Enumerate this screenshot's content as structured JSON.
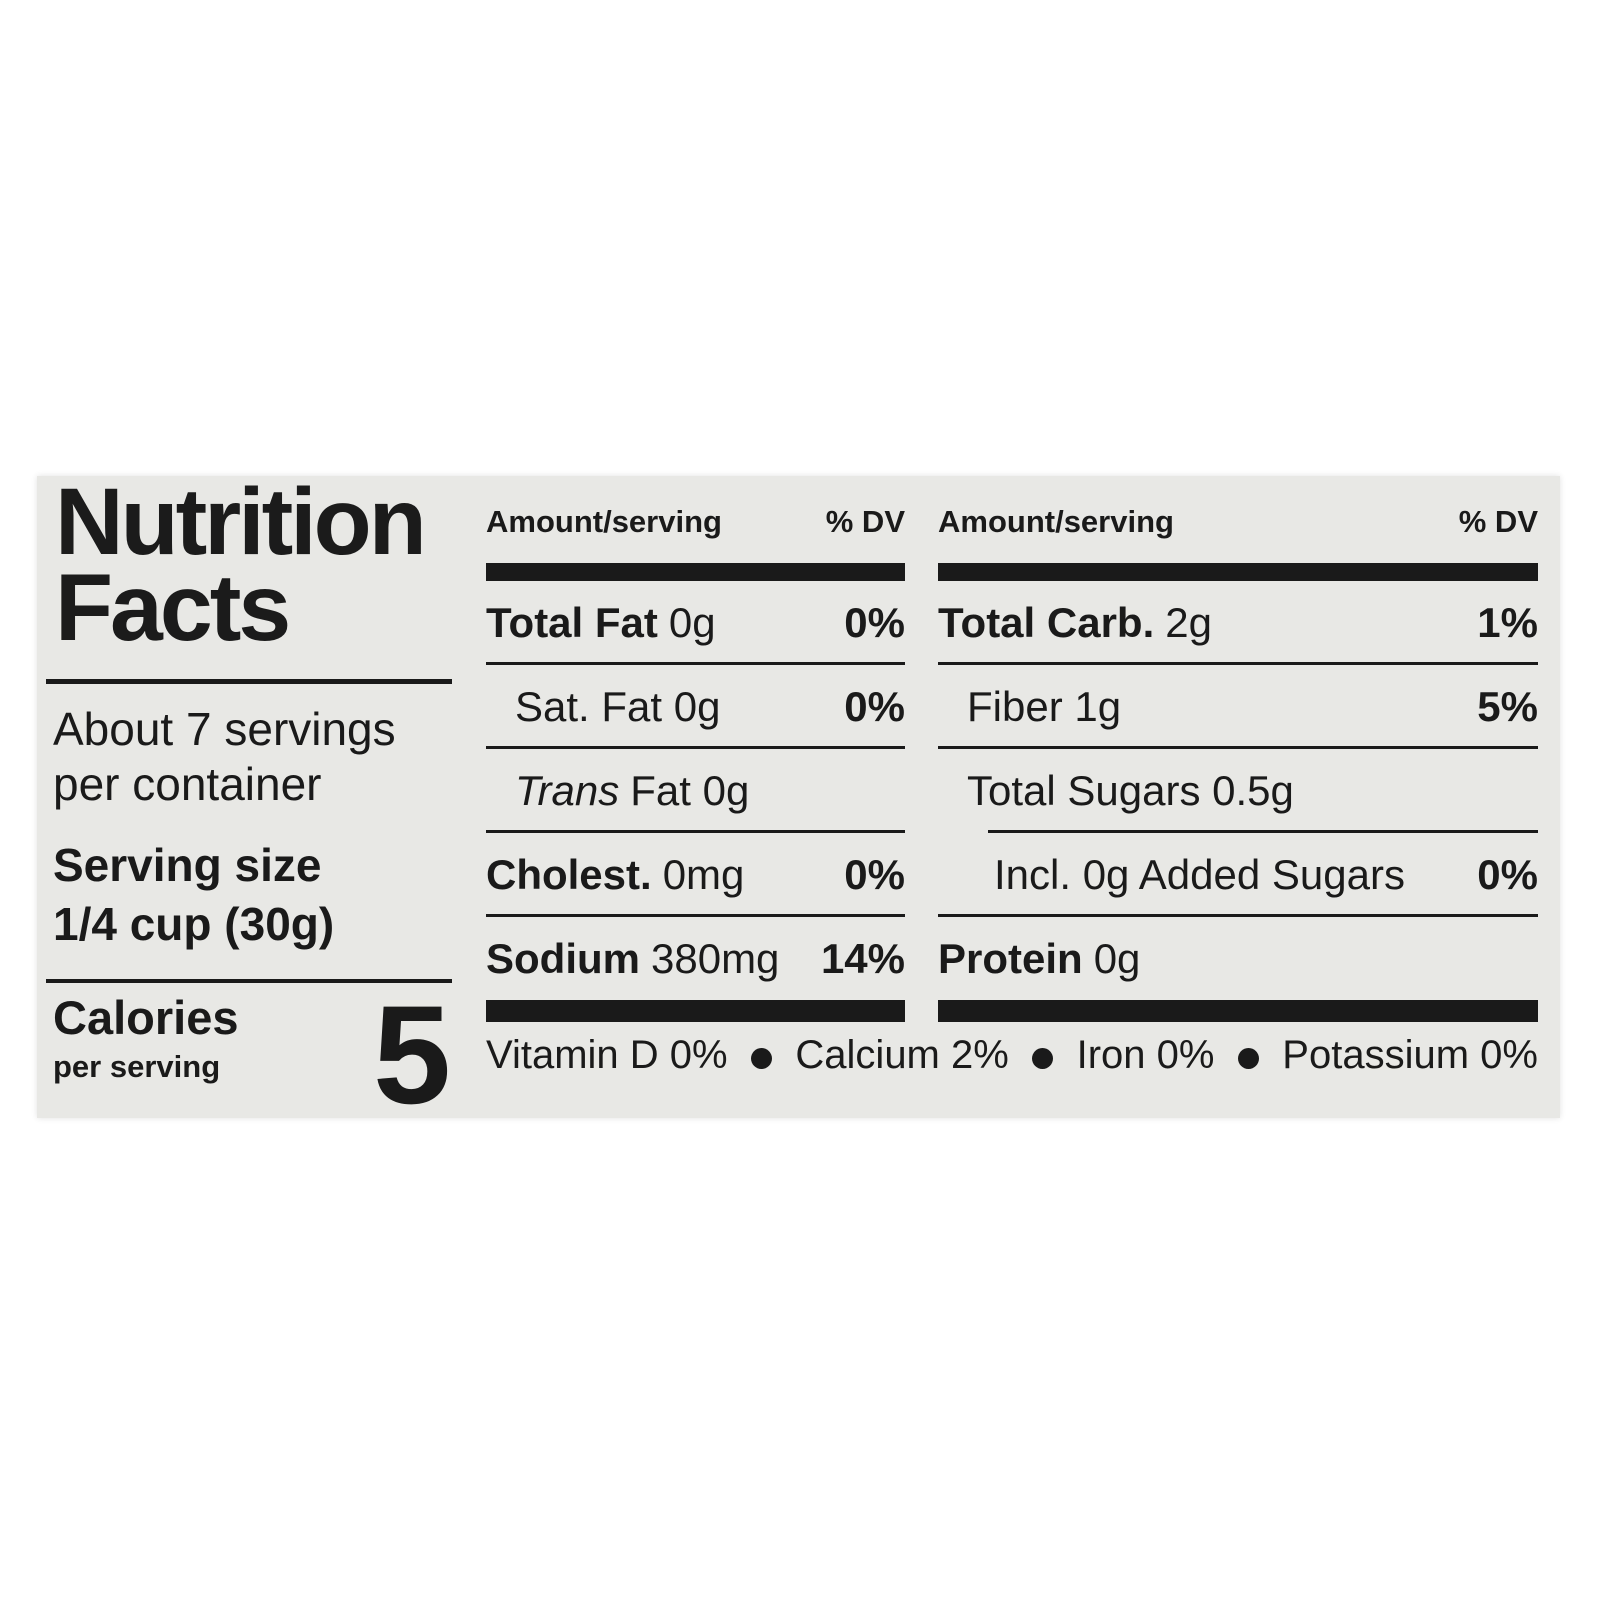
{
  "page": {
    "background": "#ffffff"
  },
  "label": {
    "background": "#e8e8e5",
    "ink": "#1a1a1a",
    "title": {
      "line1": "Nutrition",
      "line2": "Facts"
    },
    "servings_per_container": {
      "line1": "About 7 servings",
      "line2": "per container"
    },
    "serving_size": {
      "label": "Serving size",
      "value": "1/4 cup (30g)"
    },
    "calories": {
      "label": "Calories",
      "sublabel": "per serving",
      "value": "5"
    },
    "columns": [
      {
        "header": {
          "amount": "Amount/serving",
          "dv": "% DV"
        },
        "rows": [
          {
            "bold": "Total Fat",
            "italic": "",
            "text": "0g",
            "dv": "0%"
          },
          {
            "bold": "",
            "italic": "",
            "text": "Sat. Fat 0g",
            "dv": "0%"
          },
          {
            "bold": "",
            "italic": "Trans",
            "text": "Fat 0g",
            "dv": ""
          },
          {
            "bold": "Cholest.",
            "italic": "",
            "text": "0mg",
            "dv": "0%"
          },
          {
            "bold": "Sodium",
            "italic": "",
            "text": "380mg",
            "dv": "14%"
          }
        ]
      },
      {
        "header": {
          "amount": "Amount/serving",
          "dv": "% DV"
        },
        "rows": [
          {
            "bold": "Total Carb.",
            "italic": "",
            "text": "2g",
            "dv": "1%"
          },
          {
            "bold": "",
            "italic": "",
            "text": "Fiber 1g",
            "dv": "5%"
          },
          {
            "bold": "",
            "italic": "",
            "text": "Total Sugars 0.5g",
            "dv": ""
          },
          {
            "bold": "",
            "italic": "",
            "text": "Incl. 0g Added Sugars",
            "dv": "0%"
          },
          {
            "bold": "Protein",
            "italic": "",
            "text": "0g",
            "dv": ""
          }
        ]
      }
    ],
    "micronutrients": [
      "Vitamin D 0%",
      "Calcium 2%",
      "Iron 0%",
      "Potassium 0%"
    ]
  }
}
